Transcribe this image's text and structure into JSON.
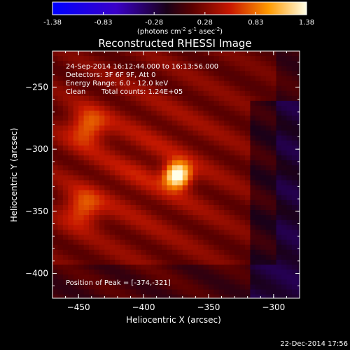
{
  "chart_data": {
    "type": "heatmap",
    "title": "Reconstructed RHESSI Image",
    "colorbar": {
      "ticks": [
        "-1.38",
        "-0.83",
        "-0.28",
        "0.28",
        "0.83",
        "1.38"
      ],
      "unit_label": {
        "pre": "(photons cm",
        "sup1": "-2",
        "mid1": " s",
        "sup2": "-1",
        "mid2": " asec",
        "sup3": "-2",
        "post": ")"
      },
      "range": [
        -1.38,
        1.38
      ]
    },
    "annotations": {
      "time_range": "24-Sep-2014 16:12:44.000 to 16:13:56.000",
      "detectors": "Detectors: 3F 6F 9F, Att 0",
      "energy": "Energy Range: 6.0 - 12.0 keV",
      "clean": "Clean",
      "total_counts": "Total counts: 1.24E+05",
      "peak": "Position of Peak = [-374,-321]"
    },
    "xlabel": "Heliocentric X (arcsec)",
    "ylabel": "Heliocentric Y (arcsec)",
    "xlim": [
      -470,
      -280
    ],
    "ylim": [
      -420,
      -221
    ],
    "x_ticks": [
      -450,
      -400,
      -350,
      -300
    ],
    "y_ticks": [
      -250,
      -300,
      -350,
      -400
    ],
    "x_tick_labels": [
      "−450",
      "−400",
      "−350",
      "−300"
    ],
    "y_tick_labels": [
      "−250",
      "−300",
      "−350",
      "−400"
    ],
    "peak": {
      "x": -374,
      "y": -321,
      "value": 1.38
    },
    "secondary_sources": [
      {
        "x": -443,
        "y": -282,
        "value": 0.6
      },
      {
        "x": -447,
        "y": -348,
        "value": 0.55
      }
    ],
    "colormap": "hot",
    "footer_timestamp": "22-Dec-2014 17:56"
  }
}
